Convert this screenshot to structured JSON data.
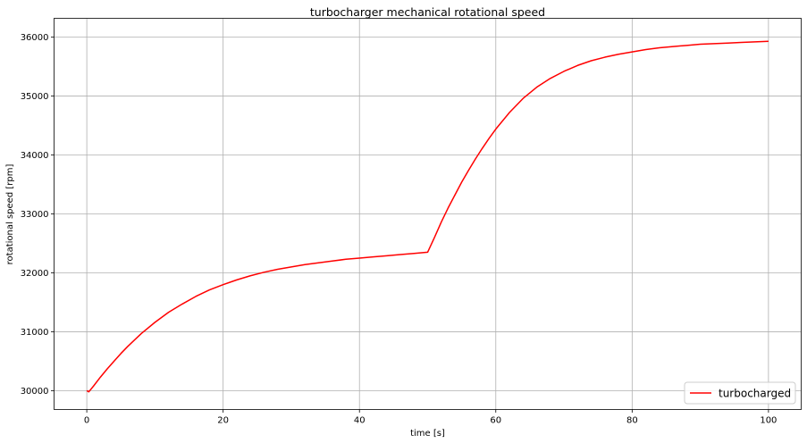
{
  "chart_data": {
    "type": "line",
    "title": "turbocharger mechanical rotational speed",
    "xlabel": "time [s]",
    "ylabel": "rotational speed [rpm]",
    "xlim": [
      -4.8,
      104.8
    ],
    "ylim": [
      29680,
      36320
    ],
    "xticks": [
      0,
      20,
      40,
      60,
      80,
      100
    ],
    "yticks": [
      30000,
      31000,
      32000,
      33000,
      34000,
      35000,
      36000
    ],
    "grid": true,
    "legend": {
      "position": "lower right",
      "entries": [
        "turbocharged"
      ]
    },
    "series": [
      {
        "name": "turbocharged",
        "color": "#ff0000",
        "x": [
          0,
          0.3,
          1,
          2,
          3,
          4,
          5,
          6,
          8,
          10,
          12,
          14,
          16,
          18,
          20,
          22,
          24,
          26,
          28,
          30,
          32,
          34,
          36,
          38,
          40,
          42,
          44,
          46,
          48,
          50,
          51,
          52,
          53,
          54,
          55,
          56,
          57,
          58,
          59,
          60,
          62,
          64,
          66,
          68,
          70,
          72,
          74,
          76,
          78,
          80,
          82,
          84,
          86,
          88,
          90,
          92,
          94,
          96,
          98,
          100
        ],
        "values": [
          30000,
          29980,
          30080,
          30230,
          30370,
          30500,
          30630,
          30750,
          30970,
          31160,
          31330,
          31470,
          31600,
          31710,
          31800,
          31880,
          31950,
          32010,
          32060,
          32100,
          32140,
          32170,
          32200,
          32230,
          32250,
          32270,
          32290,
          32310,
          32330,
          32350,
          32600,
          32860,
          33100,
          33320,
          33540,
          33740,
          33930,
          34110,
          34280,
          34440,
          34720,
          34960,
          35150,
          35300,
          35420,
          35520,
          35600,
          35660,
          35710,
          35750,
          35790,
          35820,
          35840,
          35860,
          35880,
          35890,
          35900,
          35910,
          35920,
          35930
        ]
      }
    ]
  }
}
